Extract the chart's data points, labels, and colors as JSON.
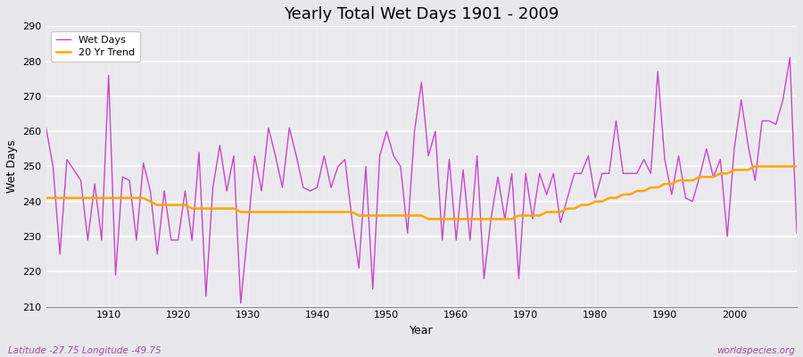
{
  "title": "Yearly Total Wet Days 1901 - 2009",
  "xlabel": "Year",
  "ylabel": "Wet Days",
  "bottom_left": "Latitude -27.75 Longitude -49.75",
  "bottom_right": "worldspecies.org",
  "ylim": [
    210,
    290
  ],
  "yticks": [
    210,
    220,
    230,
    240,
    250,
    260,
    270,
    280,
    290
  ],
  "xlim": [
    1901,
    2009
  ],
  "wet_days_color": "#CC44CC",
  "trend_color": "#FFA500",
  "fig_bg_color": "#E8E8EC",
  "plot_bg_color": "#EAEAEE",
  "legend_entries": [
    "Wet Days",
    "20 Yr Trend"
  ],
  "years": [
    1901,
    1902,
    1903,
    1904,
    1905,
    1906,
    1907,
    1908,
    1909,
    1910,
    1911,
    1912,
    1913,
    1914,
    1915,
    1916,
    1917,
    1918,
    1919,
    1920,
    1921,
    1922,
    1923,
    1924,
    1925,
    1926,
    1927,
    1928,
    1929,
    1930,
    1931,
    1932,
    1933,
    1934,
    1935,
    1936,
    1937,
    1938,
    1939,
    1940,
    1941,
    1942,
    1943,
    1944,
    1945,
    1946,
    1947,
    1948,
    1949,
    1950,
    1951,
    1952,
    1953,
    1954,
    1955,
    1956,
    1957,
    1958,
    1959,
    1960,
    1961,
    1962,
    1963,
    1964,
    1965,
    1966,
    1967,
    1968,
    1969,
    1970,
    1971,
    1972,
    1973,
    1974,
    1975,
    1976,
    1977,
    1978,
    1979,
    1980,
    1981,
    1982,
    1983,
    1984,
    1985,
    1986,
    1987,
    1988,
    1989,
    1990,
    1991,
    1992,
    1993,
    1994,
    1995,
    1996,
    1997,
    1998,
    1999,
    2000,
    2001,
    2002,
    2003,
    2004,
    2005,
    2006,
    2007,
    2008,
    2009
  ],
  "wet_days": [
    261,
    250,
    225,
    252,
    249,
    246,
    229,
    245,
    229,
    276,
    219,
    247,
    246,
    229,
    251,
    243,
    225,
    243,
    229,
    229,
    243,
    229,
    254,
    213,
    244,
    256,
    243,
    253,
    211,
    231,
    253,
    243,
    261,
    253,
    244,
    261,
    253,
    244,
    243,
    244,
    253,
    244,
    250,
    252,
    235,
    221,
    250,
    215,
    253,
    260,
    253,
    250,
    231,
    260,
    274,
    253,
    260,
    229,
    252,
    229,
    249,
    229,
    253,
    218,
    235,
    247,
    235,
    248,
    218,
    248,
    235,
    248,
    242,
    248,
    234,
    241,
    248,
    248,
    253,
    241,
    248,
    248,
    263,
    248,
    248,
    248,
    252,
    248,
    277,
    252,
    242,
    253,
    241,
    240,
    247,
    255,
    247,
    252,
    230,
    255,
    269,
    256,
    246,
    263,
    263,
    262,
    269,
    281,
    231
  ],
  "trend": [
    241,
    241,
    241,
    241,
    241,
    241,
    241,
    241,
    241,
    241,
    241,
    241,
    241,
    241,
    241,
    240,
    239,
    239,
    239,
    239,
    239,
    238,
    238,
    238,
    238,
    238,
    238,
    238,
    237,
    237,
    237,
    237,
    237,
    237,
    237,
    237,
    237,
    237,
    237,
    237,
    237,
    237,
    237,
    237,
    237,
    236,
    236,
    236,
    236,
    236,
    236,
    236,
    236,
    236,
    236,
    235,
    235,
    235,
    235,
    235,
    235,
    235,
    235,
    235,
    235,
    235,
    235,
    235,
    236,
    236,
    236,
    236,
    237,
    237,
    237,
    238,
    238,
    239,
    239,
    240,
    240,
    241,
    241,
    242,
    242,
    243,
    243,
    244,
    244,
    245,
    245,
    246,
    246,
    246,
    247,
    247,
    247,
    248,
    248,
    249,
    249,
    249,
    250,
    250,
    250,
    250,
    250,
    250,
    250
  ]
}
